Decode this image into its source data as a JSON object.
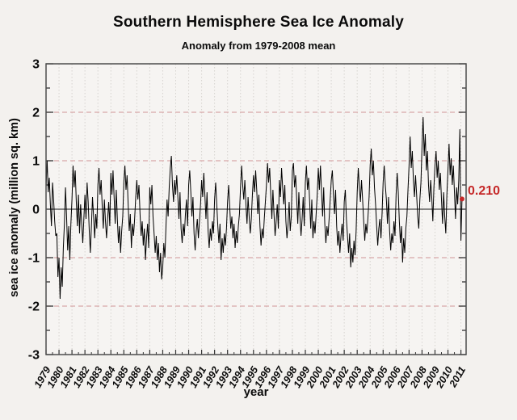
{
  "header": {
    "title": "Southern Hemisphere Sea Ice Anomaly",
    "subtitle": "Anomaly from 1979-2008 mean"
  },
  "annotation": {
    "current_value_label": "0.210",
    "color": "#c52828"
  },
  "chart_data": {
    "type": "line",
    "title": "Southern Hemisphere Sea Ice Anomaly",
    "subtitle": "Anomaly from 1979-2008 mean",
    "xlabel": "year",
    "ylabel": "sea ice anomaly (million sq. km)",
    "xlim": [
      1979,
      2011.4
    ],
    "ylim": [
      -3,
      3
    ],
    "y_ticks": [
      -3,
      -2,
      -1,
      0,
      1,
      2,
      3
    ],
    "y_minor_step": 0.5,
    "x_ticks": [
      1979,
      1980,
      1981,
      1982,
      1983,
      1984,
      1985,
      1986,
      1987,
      1988,
      1989,
      1990,
      1991,
      1992,
      1993,
      1994,
      1995,
      1996,
      1997,
      1998,
      1999,
      2000,
      2001,
      2002,
      2003,
      2004,
      2005,
      2006,
      2007,
      2008,
      2009,
      2010,
      2011
    ],
    "grid": {
      "h_dashed_at": [
        2,
        1,
        -1,
        -2
      ],
      "v_dotted_every_year": true,
      "zero_line": 0
    },
    "legend": "none",
    "series": [
      {
        "name": "sea ice anomaly (million sq. km)",
        "start_year": 1979,
        "points_per_year": 12,
        "values": [
          0.45,
          1.0,
          0.35,
          0.65,
          0.1,
          -0.35,
          0.55,
          0.2,
          -0.25,
          -0.55,
          -0.5,
          -1.4,
          -1.0,
          -1.85,
          -1.2,
          -1.6,
          -0.8,
          -0.3,
          0.45,
          -0.15,
          -0.85,
          -0.35,
          -1.05,
          -0.3,
          0.2,
          0.9,
          0.45,
          0.8,
          0.15,
          -0.35,
          0.3,
          -0.5,
          0.1,
          -0.3,
          -0.7,
          -0.2,
          0.3,
          -0.2,
          0.55,
          0.15,
          -0.45,
          -0.9,
          -0.35,
          0.25,
          -0.15,
          -0.6,
          -0.1,
          -0.4,
          0.5,
          0.85,
          0.3,
          0.6,
          0.05,
          -0.4,
          0.2,
          -0.25,
          -0.6,
          -0.2,
          0.15,
          -0.35,
          0.75,
          0.3,
          0.8,
          0.25,
          -0.3,
          0.4,
          -0.2,
          -0.7,
          -0.35,
          -0.9,
          -0.45,
          -0.15,
          0.55,
          0.9,
          0.4,
          0.7,
          0.1,
          -0.45,
          -0.1,
          -0.8,
          -0.3,
          -0.55,
          -0.2,
          0.25,
          0.6,
          0.2,
          0.5,
          -0.1,
          -0.55,
          -0.25,
          -0.75,
          -0.4,
          -1.05,
          -0.6,
          -0.3,
          -0.8,
          0.45,
          0.1,
          0.5,
          -0.15,
          -0.5,
          -0.9,
          -0.55,
          -1.05,
          -0.7,
          -1.3,
          -0.9,
          -1.45,
          -1.2,
          -0.7,
          -1.0,
          -0.35,
          0.2,
          -0.15,
          0.45,
          0.85,
          1.1,
          0.5,
          0.15,
          0.6,
          0.3,
          0.7,
          0.25,
          -0.2,
          0.35,
          -0.4,
          -0.7,
          -0.3,
          -0.55,
          -0.1,
          0.2,
          -0.35,
          0.5,
          0.8,
          0.35,
          -0.15,
          0.25,
          -0.5,
          -0.85,
          -0.45,
          -0.2,
          -0.6,
          -0.25,
          0.1,
          0.6,
          0.25,
          0.75,
          0.3,
          -0.2,
          0.35,
          -0.45,
          -0.8,
          -0.4,
          -0.65,
          -0.25,
          -0.5,
          0.2,
          0.55,
          0.1,
          -0.35,
          -0.7,
          -0.3,
          -1.05,
          -0.6,
          -0.9,
          -0.5,
          -0.75,
          -0.4,
          0.15,
          0.5,
          0.05,
          -0.4,
          -0.15,
          -0.6,
          -0.3,
          -0.8,
          -0.45,
          -0.7,
          -0.35,
          -0.1,
          0.45,
          0.9,
          0.5,
          0.2,
          0.6,
          0.1,
          -0.3,
          0.25,
          -0.15,
          -0.5,
          -0.2,
          0.3,
          0.7,
          0.35,
          0.8,
          0.4,
          -0.1,
          0.3,
          -0.35,
          -0.75,
          -0.4,
          -0.6,
          -0.2,
          0.15,
          0.5,
          0.95,
          0.55,
          0.85,
          0.3,
          -0.2,
          0.4,
          -0.1,
          -0.55,
          -0.25,
          0.1,
          -0.4,
          0.6,
          0.25,
          0.85,
          0.45,
          0.1,
          0.5,
          -0.25,
          -0.6,
          -0.3,
          0.15,
          -0.45,
          -0.15,
          0.8,
          0.95,
          0.45,
          0.7,
          0.2,
          -0.3,
          0.35,
          -0.15,
          -0.55,
          -0.2,
          0.25,
          -0.35,
          0.55,
          0.9,
          0.4,
          0.65,
          0.15,
          -0.4,
          0.2,
          -0.6,
          -0.25,
          -0.5,
          -0.1,
          0.3,
          0.85,
          0.4,
          0.9,
          0.35,
          -0.15,
          0.45,
          -0.3,
          -0.7,
          -0.35,
          -0.55,
          -0.2,
          0.2,
          0.6,
          0.8,
          0.3,
          -0.1,
          0.4,
          -0.35,
          -0.75,
          -0.45,
          -0.9,
          -0.55,
          -0.3,
          -0.65,
          0.15,
          0.4,
          -0.2,
          -0.55,
          -0.9,
          -0.5,
          -1.2,
          -0.8,
          -1.1,
          -0.65,
          -0.95,
          -0.45,
          0.35,
          0.85,
          0.45,
          0.15,
          0.6,
          0.2,
          -0.25,
          -0.65,
          -0.3,
          -0.5,
          -0.15,
          0.25,
          0.9,
          1.25,
          0.7,
          1.0,
          0.45,
          0.1,
          -0.35,
          -0.75,
          -0.4,
          -0.2,
          -0.6,
          -0.1,
          0.55,
          0.9,
          0.5,
          0.2,
          -0.3,
          0.25,
          -0.45,
          -0.85,
          -0.5,
          -0.7,
          -0.25,
          -0.55,
          0.3,
          0.75,
          0.35,
          -0.25,
          -0.7,
          -0.35,
          -1.1,
          -0.6,
          -0.9,
          -0.4,
          -0.15,
          0.4,
          0.9,
          1.5,
          0.85,
          1.2,
          0.6,
          0.25,
          0.7,
          0.3,
          -0.15,
          -0.4,
          0.2,
          0.55,
          1.3,
          1.9,
          1.1,
          1.55,
          0.8,
          1.2,
          0.5,
          0.15,
          0.6,
          0.25,
          -0.25,
          0.45,
          0.9,
          1.2,
          0.65,
          1.0,
          0.4,
          0.75,
          0.2,
          -0.3,
          0.35,
          -0.15,
          -0.5,
          0.3,
          0.8,
          1.35,
          0.7,
          1.05,
          0.5,
          0.9,
          0.35,
          -0.2,
          0.45,
          0.1,
          0.6,
          1.65,
          -0.65,
          0.21
        ]
      }
    ],
    "last_value": 0.21,
    "last_value_label": "0.210",
    "colors": {
      "line": "#000000",
      "grid_dashed": "#d8a8a8",
      "grid_dotted": "#d6d3cf",
      "frame": "#4d4d4d",
      "zero_line": "#1a1a1a",
      "annotation_red": "#c52828",
      "background": "#f3f1ee",
      "plot_background": "#f6f4f2"
    }
  }
}
